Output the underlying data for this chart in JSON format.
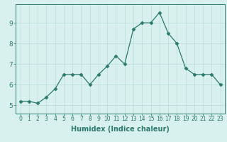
{
  "title": "",
  "xlabel": "Humidex (Indice chaleur)",
  "ylabel": "",
  "x": [
    0,
    1,
    2,
    3,
    4,
    5,
    6,
    7,
    8,
    9,
    10,
    11,
    12,
    13,
    14,
    15,
    16,
    17,
    18,
    19,
    20,
    21,
    22,
    23
  ],
  "y": [
    5.2,
    5.2,
    5.1,
    5.4,
    5.8,
    6.5,
    6.5,
    6.5,
    6.0,
    6.5,
    6.9,
    7.4,
    7.0,
    8.7,
    9.0,
    9.0,
    9.5,
    8.5,
    8.0,
    6.8,
    6.5,
    6.5,
    6.5,
    6.0
  ],
  "line_color": "#2d7a6e",
  "marker": "D",
  "marker_size": 2.5,
  "background_color": "#d8f0ee",
  "grid_color": "#b8dcd8",
  "axis_color": "#2d7a6e",
  "tick_color": "#2d7a6e",
  "label_color": "#2d7a6e",
  "ylim": [
    4.6,
    9.9
  ],
  "yticks": [
    5,
    6,
    7,
    8,
    9
  ],
  "xlim": [
    -0.5,
    23.5
  ],
  "fontsize_label": 7,
  "fontsize_tick_x": 5.5,
  "fontsize_tick_y": 6.5
}
